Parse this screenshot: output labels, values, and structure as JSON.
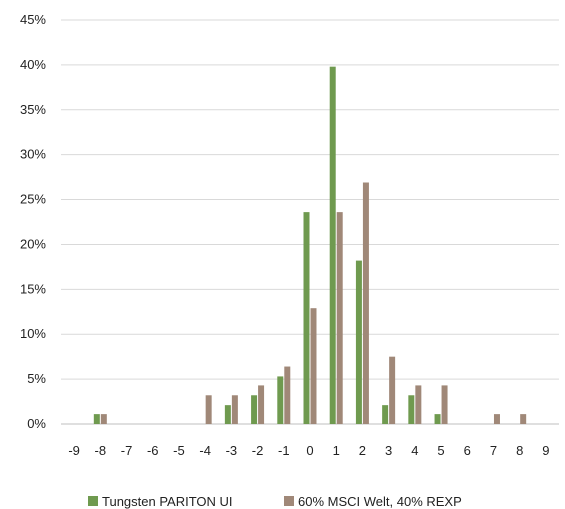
{
  "chart_data": {
    "type": "bar",
    "categories": [
      "-9",
      "-8",
      "-7",
      "-6",
      "-5",
      "-4",
      "-3",
      "-2",
      "-1",
      "0",
      "1",
      "2",
      "3",
      "4",
      "5",
      "6",
      "7",
      "8",
      "9"
    ],
    "series": [
      {
        "name": "Tungsten PARITON UI",
        "color": "#6f9a4f",
        "values": [
          0,
          1.1,
          0,
          0,
          0,
          0,
          2.1,
          3.2,
          5.3,
          23.6,
          39.8,
          18.2,
          2.1,
          3.2,
          1.1,
          0,
          0,
          0,
          0
        ]
      },
      {
        "name": "60% MSCI Welt, 40% REXP",
        "color": "#a08878",
        "values": [
          0,
          1.1,
          0,
          0,
          0,
          3.2,
          3.2,
          4.3,
          6.4,
          12.9,
          23.6,
          26.9,
          7.5,
          4.3,
          4.3,
          0,
          1.1,
          1.1,
          0
        ]
      }
    ],
    "y_ticks": [
      "0%",
      "5%",
      "10%",
      "15%",
      "20%",
      "25%",
      "30%",
      "35%",
      "40%",
      "45%"
    ],
    "ylim": [
      0,
      45
    ],
    "grid": true,
    "legend_position": "bottom",
    "title": "",
    "xlabel": "",
    "ylabel": ""
  }
}
